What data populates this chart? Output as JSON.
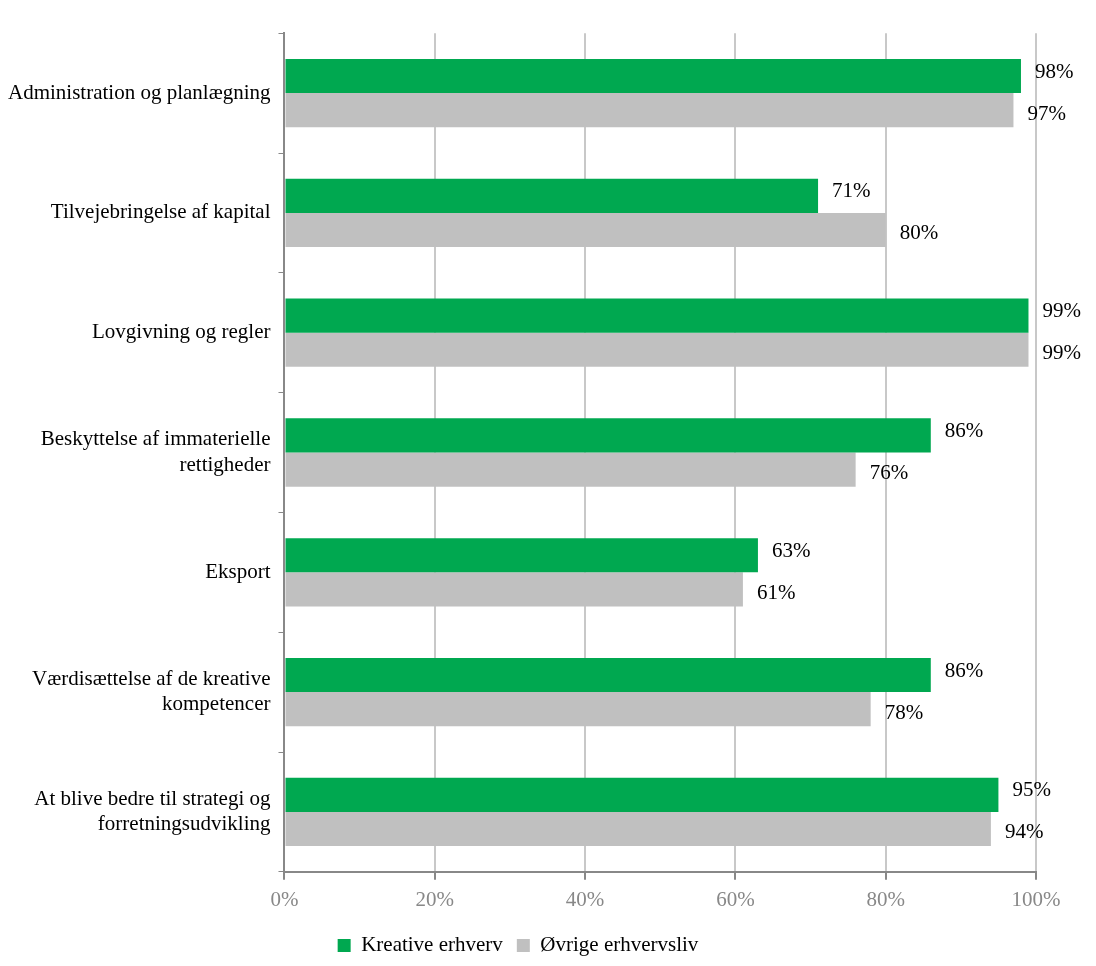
{
  "chart_data": {
    "type": "bar",
    "orientation": "horizontal",
    "categories": [
      "Administration og planlægning",
      "Tilvejebringelse af kapital",
      "Lovgivning og regler",
      "Beskyttelse af immaterielle rettigheder",
      "Eksport",
      "Værdisættelse af de kreative kompetencer",
      "At blive bedre til strategi og forretningsudvikling"
    ],
    "series": [
      {
        "name": "Kreative erhverv",
        "color": "#00a850",
        "values": [
          98,
          71,
          99,
          86,
          63,
          86,
          95
        ],
        "value_labels": [
          "98%",
          "71%",
          "99%",
          "86%",
          "63%",
          "86%",
          "95%"
        ]
      },
      {
        "name": "Øvrige erhvervsliv",
        "color": "#c0c0c0",
        "values": [
          97,
          80,
          99,
          76,
          61,
          78,
          94
        ],
        "value_labels": [
          "97%",
          "80%",
          "99%",
          "76%",
          "61%",
          "78%",
          "94%"
        ]
      }
    ],
    "xlim": [
      0,
      100
    ],
    "xticks": [
      {
        "value": 0,
        "label": "0%"
      },
      {
        "value": 20,
        "label": "20%"
      },
      {
        "value": 40,
        "label": "40%"
      },
      {
        "value": 60,
        "label": "60%"
      },
      {
        "value": 80,
        "label": "80%"
      },
      {
        "value": 100,
        "label": "100%"
      }
    ],
    "grid": "x",
    "legend": "bottom"
  }
}
